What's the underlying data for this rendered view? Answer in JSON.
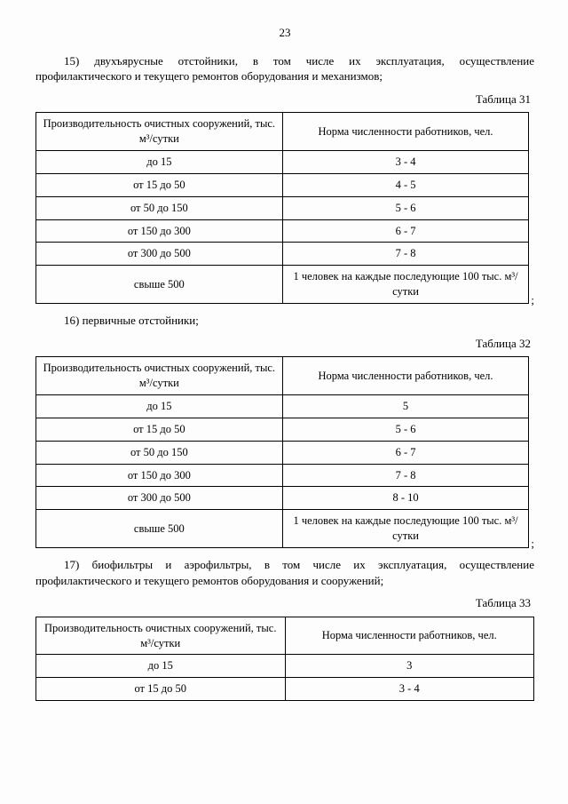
{
  "page_number": "23",
  "sections": [
    {
      "num": "15)",
      "text": "двухъярусные отстойники, в том числе их эксплуатация, осуществление профилактического и текущего ремонтов оборудования и механизмов;",
      "caption": "Таблица 31",
      "table": {
        "head_left": "Производительность очистных сооружений, тыс. м³/сутки",
        "head_right": "Норма численности работников, чел.",
        "rows": [
          [
            "до 15",
            "3 - 4"
          ],
          [
            "от 15 до 50",
            "4 - 5"
          ],
          [
            "от 50 до 150",
            "5 - 6"
          ],
          [
            "от 150 до 300",
            "6 - 7"
          ],
          [
            "от 300 до 500",
            "7 - 8"
          ],
          [
            "свыше 500",
            "1 человек на каждые последующие 100 тыс. м³/сутки"
          ]
        ]
      }
    },
    {
      "num": "16)",
      "text": "первичные отстойники;",
      "caption": "Таблица 32",
      "table": {
        "head_left": "Производительность очистных сооружений, тыс. м³/сутки",
        "head_right": "Норма численности работников, чел.",
        "rows": [
          [
            "до 15",
            "5"
          ],
          [
            "от 15 до 50",
            "5 - 6"
          ],
          [
            "от 50 до 150",
            "6 - 7"
          ],
          [
            "от 150 до 300",
            "7 - 8"
          ],
          [
            "от 300 до 500",
            "8 - 10"
          ],
          [
            "свыше 500",
            "1 человек на каждые последующие 100 тыс. м³/сутки"
          ]
        ]
      }
    },
    {
      "num": "17)",
      "text": "биофильтры и аэрофильтры, в том числе их эксплуатация, осуществление профилактического и текущего ремонтов оборудования и сооружений;",
      "caption": "Таблица 33",
      "table": {
        "head_left": "Производительность очистных сооружений, тыс. м³/сутки",
        "head_right": "Норма численности работников, чел.",
        "rows": [
          [
            "до 15",
            "3"
          ],
          [
            "от 15 до 50",
            "3 - 4"
          ]
        ]
      }
    }
  ],
  "colors": {
    "page_bg": "#fdfdfd",
    "text": "#000000",
    "border": "#000000"
  },
  "fonts": {
    "family": "Times New Roman",
    "body_size_pt": 10,
    "table_size_pt": 9.5
  }
}
